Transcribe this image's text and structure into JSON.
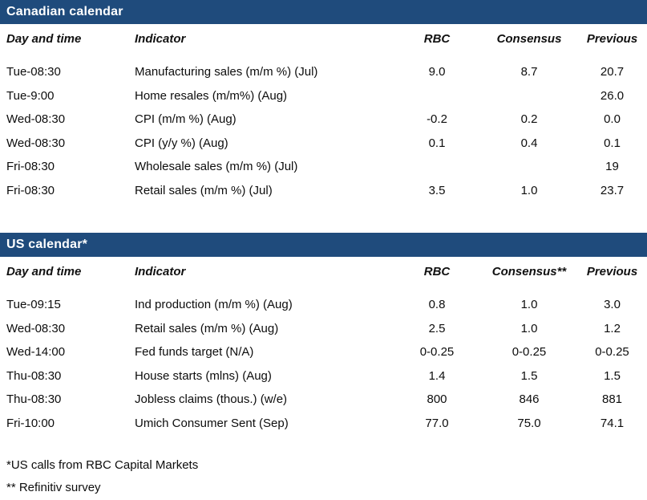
{
  "colors": {
    "header_bar": "#1f4b7c",
    "header_bar_text": "#ffffff",
    "body_text": "#0d0d0d"
  },
  "tables": [
    {
      "title": "Canadian calendar",
      "columns": [
        "Day and time",
        "Indicator",
        "RBC",
        "Consensus",
        "Previous"
      ],
      "rows": [
        [
          "Tue-08:30",
          "Manufacturing sales (m/m %) (Jul)",
          "9.0",
          "8.7",
          "20.7"
        ],
        [
          "Tue-9:00",
          "Home resales (m/m%) (Aug)",
          "",
          "",
          "26.0"
        ],
        [
          "Wed-08:30",
          "CPI (m/m %) (Aug)",
          "-0.2",
          "0.2",
          "0.0"
        ],
        [
          "Wed-08:30",
          "CPI (y/y %) (Aug)",
          "0.1",
          "0.4",
          "0.1"
        ],
        [
          "Fri-08:30",
          "Wholesale sales (m/m %) (Jul)",
          "",
          "",
          "19"
        ],
        [
          "Fri-08:30",
          "Retail sales (m/m %) (Jul)",
          "3.5",
          "1.0",
          "23.7"
        ]
      ]
    },
    {
      "title": "US calendar*",
      "columns": [
        "Day and time",
        "Indicator",
        "RBC",
        "Consensus**",
        "Previous"
      ],
      "rows": [
        [
          "Tue-09:15",
          "Ind production (m/m %) (Aug)",
          "0.8",
          "1.0",
          "3.0"
        ],
        [
          "Wed-08:30",
          "Retail sales (m/m %) (Aug)",
          "2.5",
          "1.0",
          "1.2"
        ],
        [
          "Wed-14:00",
          "Fed funds target (N/A)",
          "0-0.25",
          "0-0.25",
          "0-0.25"
        ],
        [
          "Thu-08:30",
          "House starts (mlns) (Aug)",
          "1.4",
          "1.5",
          "1.5"
        ],
        [
          "Thu-08:30",
          "Jobless claims (thous.) (w/e)",
          "800",
          "846",
          "881"
        ],
        [
          "Fri-10:00",
          "Umich Consumer Sent (Sep)",
          "77.0",
          "75.0",
          "74.1"
        ]
      ]
    }
  ],
  "footnotes": [
    "*US calls from RBC Capital Markets",
    "** Refinitiv survey"
  ]
}
